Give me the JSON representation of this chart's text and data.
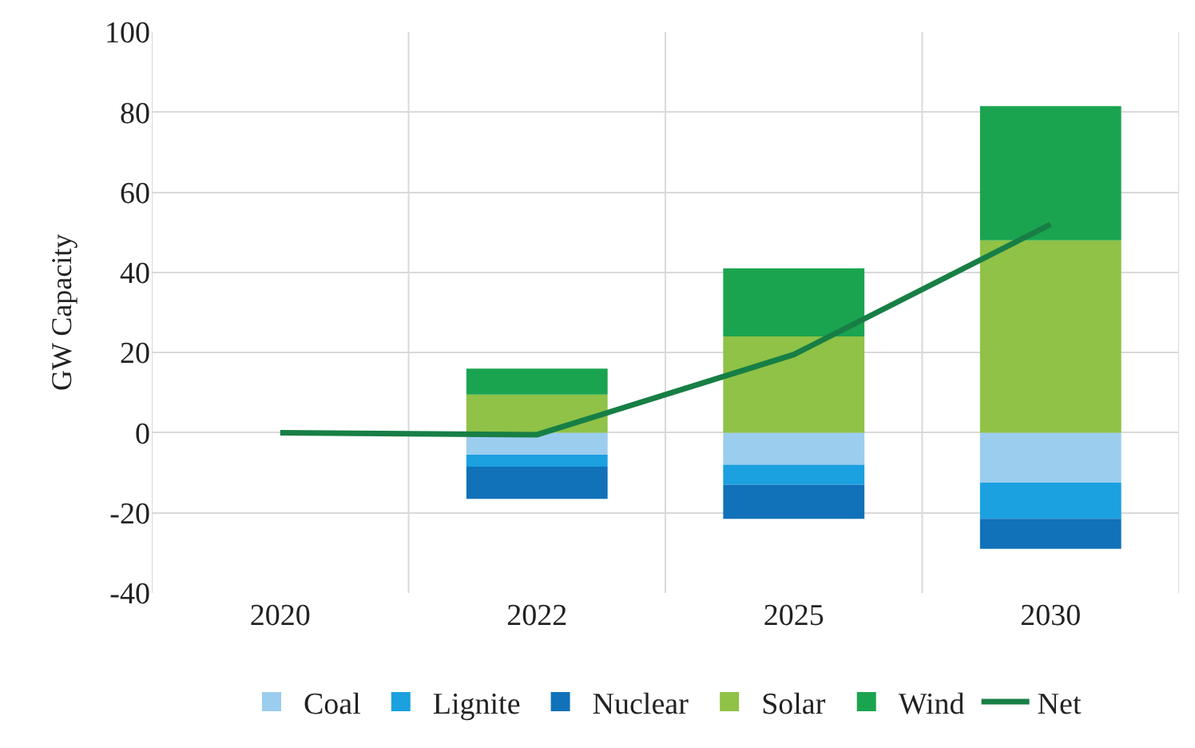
{
  "chart_data": {
    "type": "bar",
    "stacked": true,
    "ylabel": "GW Capacity",
    "categories": [
      "2020",
      "2022",
      "2025",
      "2030"
    ],
    "series": [
      {
        "name": "Coal",
        "color": "#9bcdee",
        "values": [
          null,
          -5.5,
          -8,
          -12.5
        ]
      },
      {
        "name": "Lignite",
        "color": "#1ba0e0",
        "values": [
          null,
          -3,
          -5,
          -9
        ]
      },
      {
        "name": "Nuclear",
        "color": "#1171b9",
        "values": [
          null,
          -8,
          -8.5,
          -7.5
        ]
      },
      {
        "name": "Solar",
        "color": "#8fc247",
        "values": [
          null,
          9.5,
          24,
          48
        ]
      },
      {
        "name": "Wind",
        "color": "#1ba450",
        "values": [
          null,
          6.5,
          17,
          33.5
        ]
      },
      {
        "name": "Net",
        "type": "line",
        "color": "#177f45",
        "values": [
          0,
          -0.5,
          19.5,
          52
        ]
      }
    ],
    "ylim": [
      -40,
      100
    ],
    "yticks": [
      -40,
      -20,
      0,
      20,
      40,
      60,
      80,
      100
    ],
    "grid": true,
    "legend": "bottom"
  }
}
